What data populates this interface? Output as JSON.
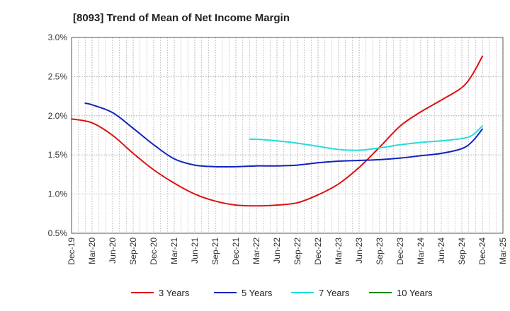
{
  "chart_data": {
    "type": "line",
    "title": "[8093]  Trend of Mean of Net Income Margin",
    "xlabel": "",
    "ylabel": "",
    "x_categories": [
      "Dec-19",
      "Mar-20",
      "Jun-20",
      "Sep-20",
      "Dec-20",
      "Mar-21",
      "Jun-21",
      "Sep-21",
      "Dec-21",
      "Mar-22",
      "Jun-22",
      "Sep-22",
      "Dec-22",
      "Mar-23",
      "Jun-23",
      "Sep-23",
      "Dec-23",
      "Mar-24",
      "Jun-24",
      "Sep-24",
      "Dec-24",
      "Mar-25"
    ],
    "y_ticks": [
      "0.5%",
      "1.0%",
      "1.5%",
      "2.0%",
      "2.5%",
      "3.0%"
    ],
    "ylim": [
      0.5,
      3.0
    ],
    "grid": true,
    "legend_position": "bottom",
    "series": [
      {
        "name": "3 Years",
        "color": "#dd1111",
        "points": [
          [
            0,
            1.96
          ],
          [
            1,
            1.91
          ],
          [
            2,
            1.75
          ],
          [
            3,
            1.52
          ],
          [
            4,
            1.31
          ],
          [
            5,
            1.14
          ],
          [
            6,
            1.0
          ],
          [
            7,
            0.91
          ],
          [
            8,
            0.86
          ],
          [
            9,
            0.85
          ],
          [
            10,
            0.86
          ],
          [
            11,
            0.89
          ],
          [
            12,
            0.99
          ],
          [
            13,
            1.13
          ],
          [
            14,
            1.34
          ],
          [
            15,
            1.6
          ],
          [
            16,
            1.87
          ],
          [
            17,
            2.05
          ],
          [
            18,
            2.2
          ],
          [
            19,
            2.36
          ],
          [
            19.5,
            2.52
          ],
          [
            20,
            2.76
          ]
        ]
      },
      {
        "name": "5 Years",
        "color": "#1122bb",
        "points": [
          [
            0.667,
            2.16
          ],
          [
            1,
            2.14
          ],
          [
            2,
            2.04
          ],
          [
            3,
            1.84
          ],
          [
            4,
            1.63
          ],
          [
            5,
            1.45
          ],
          [
            6,
            1.37
          ],
          [
            7,
            1.35
          ],
          [
            8,
            1.35
          ],
          [
            9,
            1.36
          ],
          [
            10,
            1.36
          ],
          [
            11,
            1.37
          ],
          [
            12,
            1.4
          ],
          [
            13,
            1.42
          ],
          [
            14,
            1.43
          ],
          [
            15,
            1.44
          ],
          [
            16,
            1.46
          ],
          [
            17,
            1.49
          ],
          [
            18,
            1.52
          ],
          [
            19,
            1.58
          ],
          [
            19.5,
            1.67
          ],
          [
            20,
            1.83
          ]
        ]
      },
      {
        "name": "7 Years",
        "color": "#22dddd",
        "points": [
          [
            8.667,
            1.7
          ],
          [
            9,
            1.7
          ],
          [
            10,
            1.68
          ],
          [
            11,
            1.65
          ],
          [
            12,
            1.61
          ],
          [
            13,
            1.57
          ],
          [
            14,
            1.56
          ],
          [
            15,
            1.59
          ],
          [
            16,
            1.63
          ],
          [
            17,
            1.66
          ],
          [
            18,
            1.68
          ],
          [
            19,
            1.71
          ],
          [
            19.5,
            1.75
          ],
          [
            20,
            1.87
          ]
        ]
      },
      {
        "name": "10 Years",
        "color": "#118811",
        "points": []
      }
    ]
  }
}
